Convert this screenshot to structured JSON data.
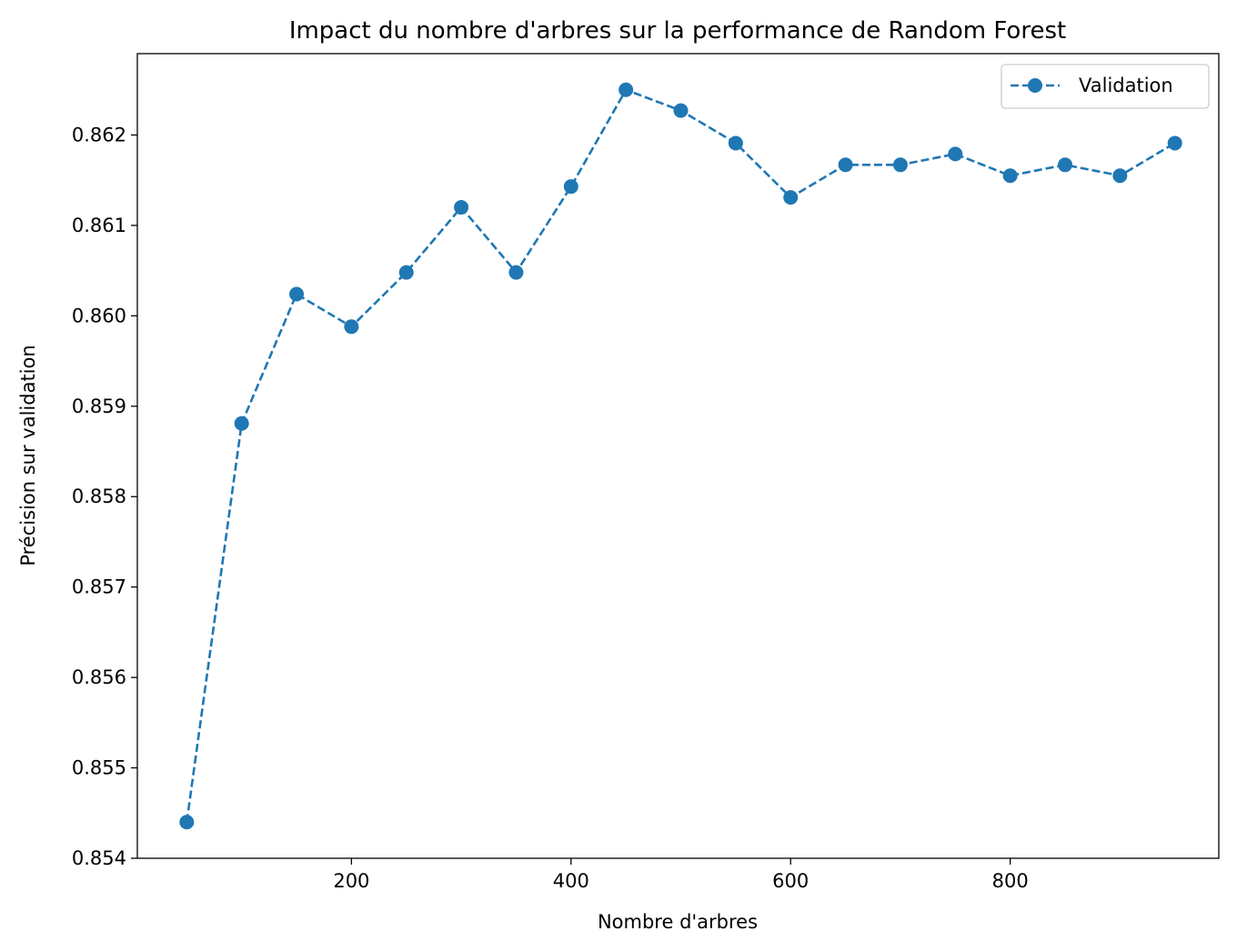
{
  "chart_data": {
    "type": "line",
    "title": "Impact du nombre d'arbres sur la performance de Random Forest",
    "xlabel": "Nombre d'arbres",
    "ylabel": "Précision sur validation",
    "xlim": [
      5,
      990
    ],
    "ylim": [
      0.854,
      0.8629
    ],
    "xticks": [
      200,
      400,
      600,
      800
    ],
    "yticks": [
      0.854,
      0.855,
      0.856,
      0.857,
      0.858,
      0.859,
      0.86,
      0.861,
      0.862
    ],
    "xtick_labels": [
      "200",
      "400",
      "600",
      "800"
    ],
    "ytick_labels": [
      "0.854",
      "0.855",
      "0.856",
      "0.857",
      "0.858",
      "0.859",
      "0.860",
      "0.861",
      "0.862"
    ],
    "grid": false,
    "legend_position": "top-right",
    "series": [
      {
        "name": "Validation",
        "color": "#1f77b4",
        "line_style": "dashed",
        "marker": "circle",
        "x": [
          50,
          100,
          150,
          200,
          250,
          300,
          350,
          400,
          450,
          500,
          550,
          600,
          650,
          700,
          750,
          800,
          850,
          900,
          950
        ],
        "y": [
          0.8544,
          0.85881,
          0.86024,
          0.85988,
          0.86048,
          0.8612,
          0.86048,
          0.86143,
          0.8625,
          0.86227,
          0.86191,
          0.86131,
          0.86167,
          0.86167,
          0.86179,
          0.86155,
          0.86167,
          0.86155,
          0.86191
        ]
      }
    ]
  }
}
